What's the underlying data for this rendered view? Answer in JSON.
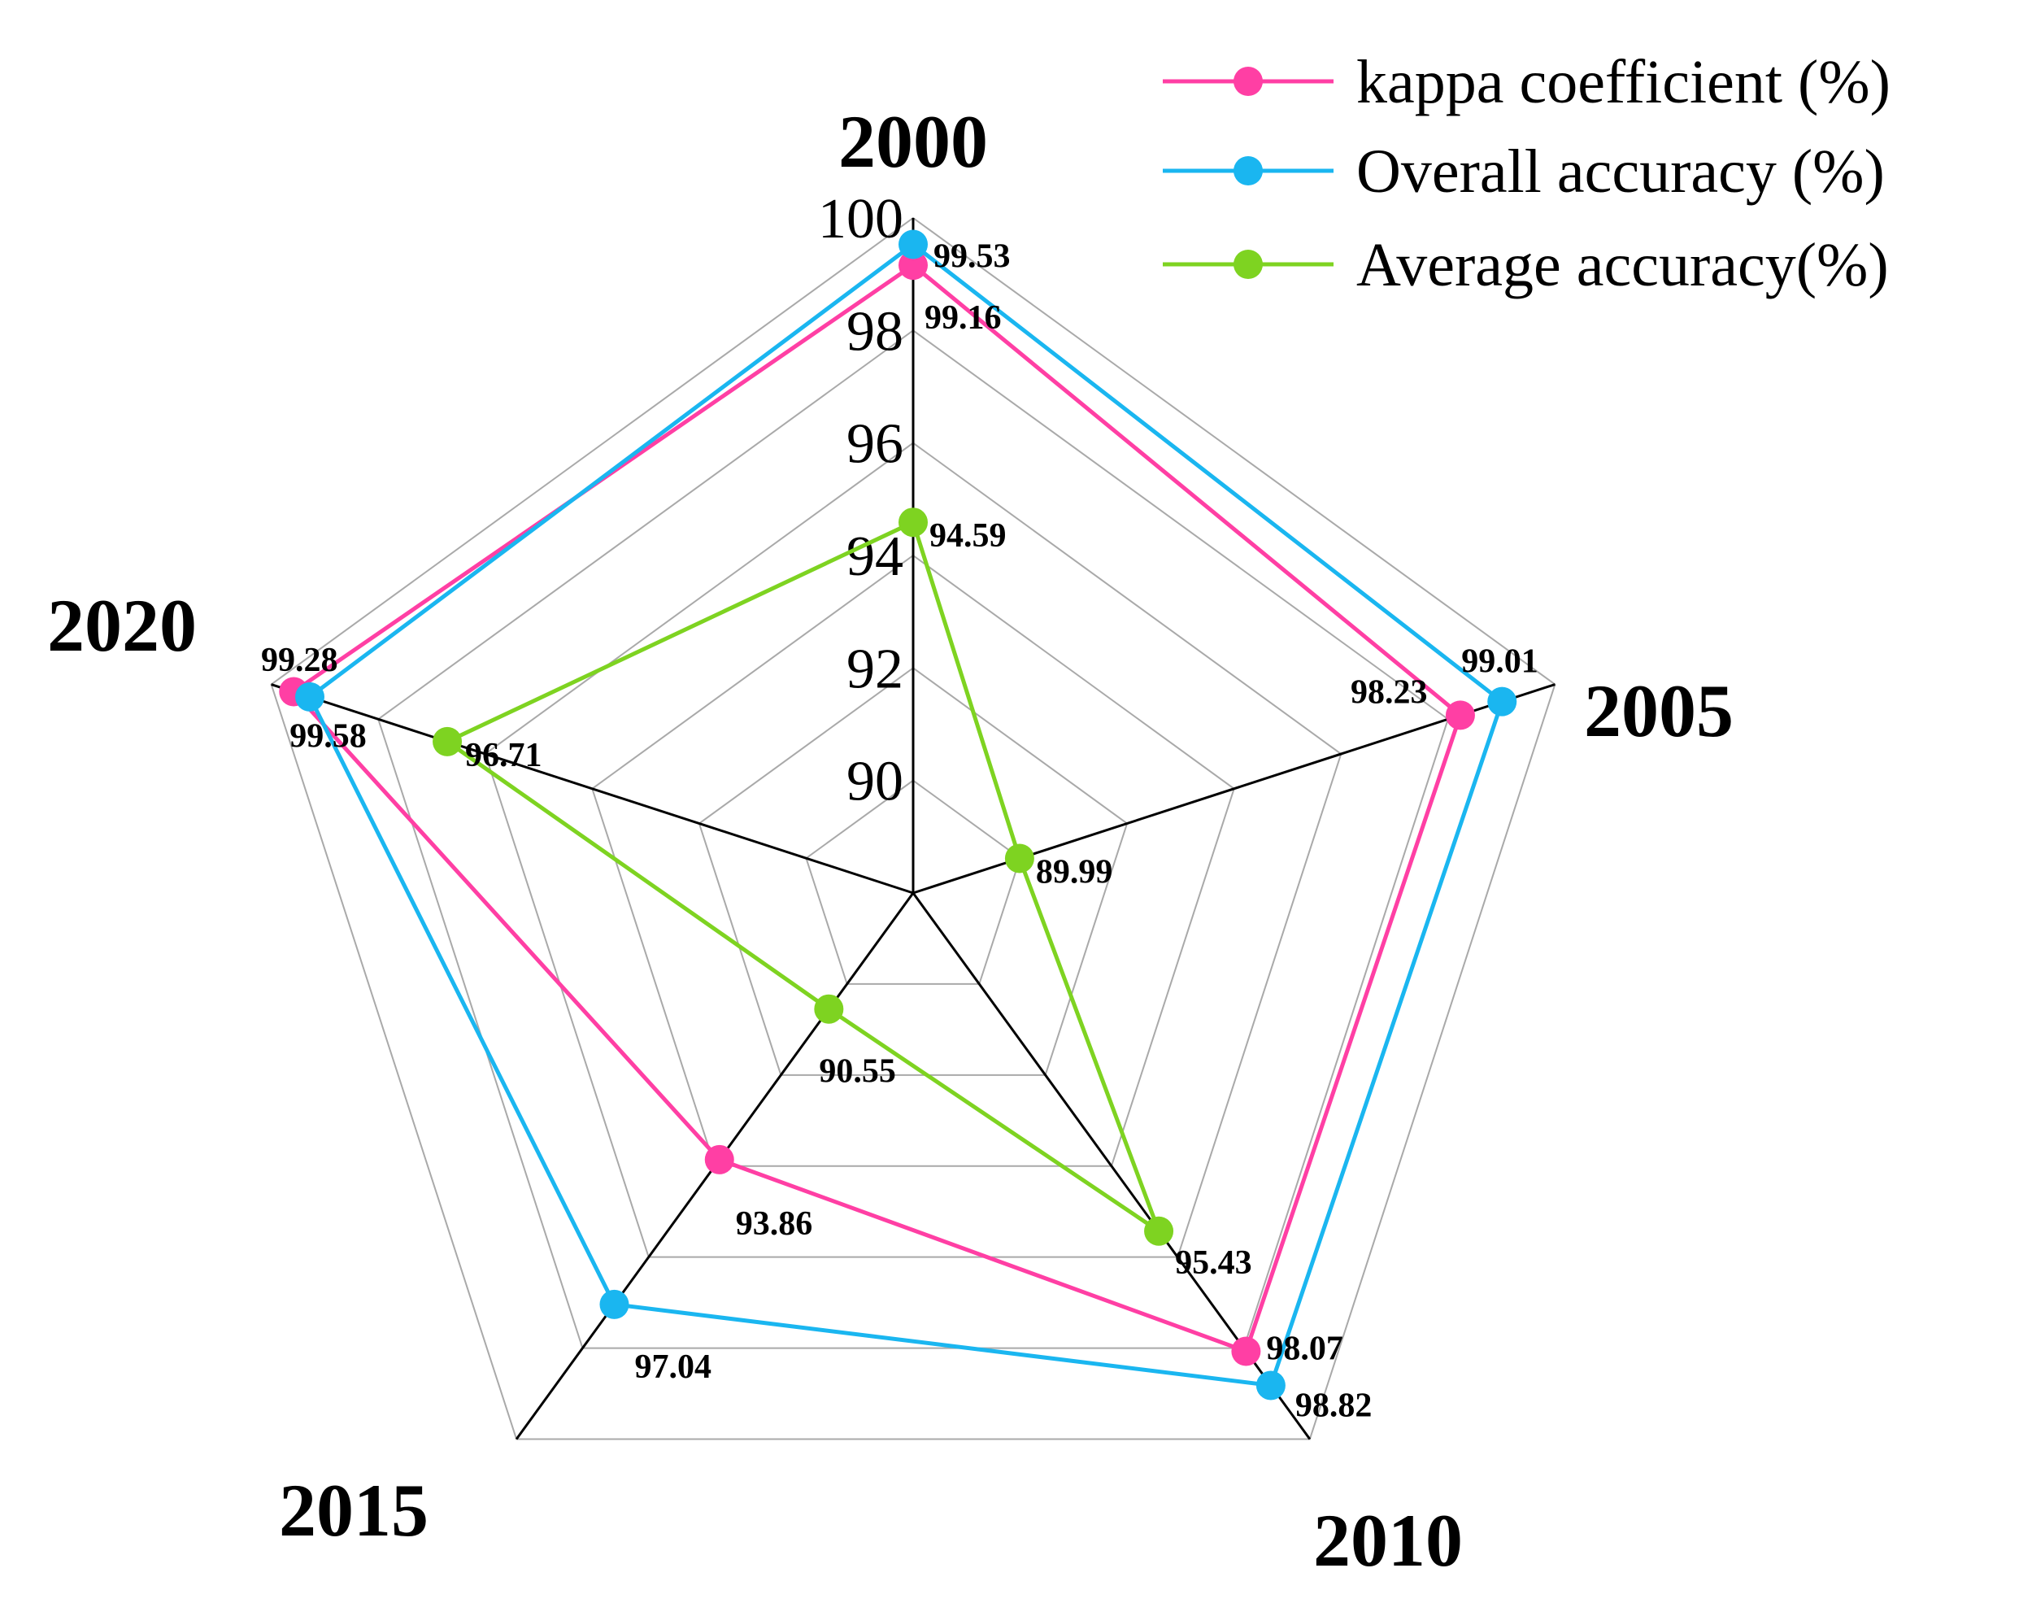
{
  "chart_data": {
    "type": "radar",
    "axes": [
      "2000",
      "2005",
      "2010",
      "2015",
      "2020"
    ],
    "rlim": [
      88,
      100
    ],
    "ticks": [
      90,
      92,
      94,
      96,
      98,
      100
    ],
    "tick_labels": [
      "90",
      "92",
      "94",
      "96",
      "98",
      "100"
    ],
    "grid": true,
    "legend_position": "top-right",
    "series": [
      {
        "name": "kappa coefficient (%)",
        "color": "#ff3fa4",
        "values": [
          99.16,
          98.23,
          98.07,
          93.86,
          99.58
        ],
        "labels": [
          "99.16",
          "98.23",
          "98.07",
          "93.86",
          "99.58"
        ]
      },
      {
        "name": "Overall accuracy (%)",
        "color": "#1ab6f0",
        "values": [
          99.53,
          99.01,
          98.82,
          97.04,
          99.28
        ],
        "labels": [
          "99.53",
          "99.01",
          "98.82",
          "97.04",
          "99.28"
        ]
      },
      {
        "name": "Average accuracy(%)",
        "color": "#7ed321",
        "values": [
          94.59,
          89.99,
          95.43,
          90.55,
          96.71
        ],
        "labels": [
          "94.59",
          "89.99",
          "95.43",
          "90.55",
          "96.71"
        ]
      }
    ]
  }
}
